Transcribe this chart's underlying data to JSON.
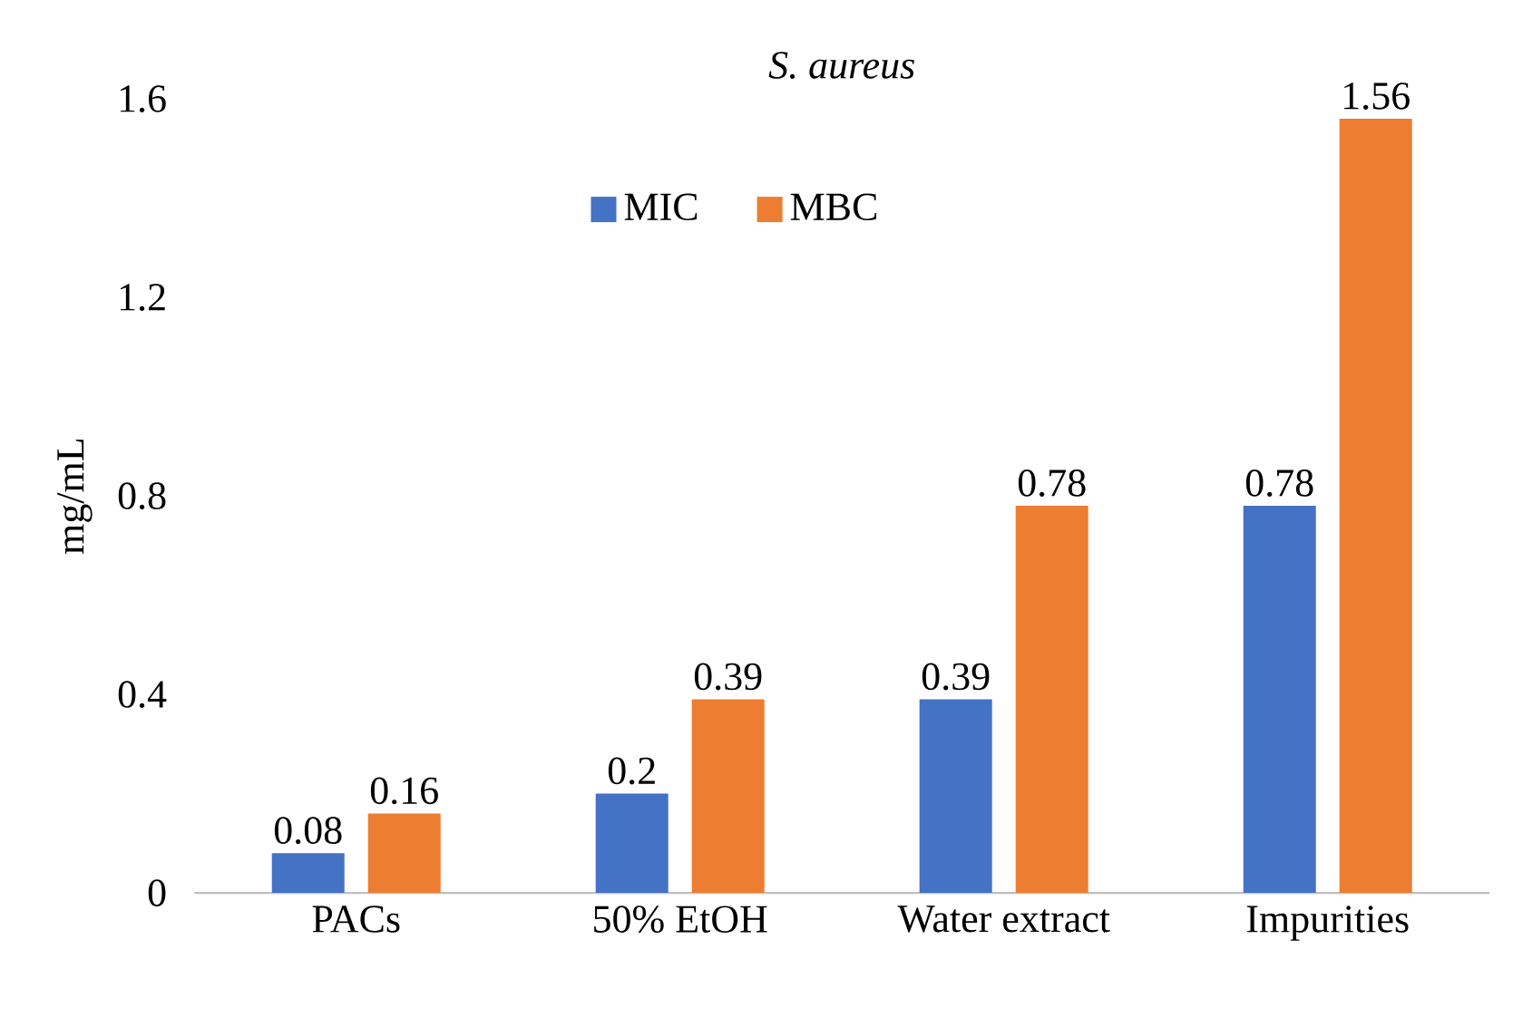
{
  "chart_data": {
    "type": "bar",
    "title": "S. aureus",
    "ylabel": "mg/mL",
    "categories": [
      "PACs",
      "50% EtOH",
      "Water extract",
      "Impurities"
    ],
    "series": [
      {
        "name": "MIC",
        "color": "#4472c4",
        "values": [
          0.08,
          0.2,
          0.39,
          0.78
        ]
      },
      {
        "name": "MBC",
        "color": "#ed7d31",
        "values": [
          0.16,
          0.39,
          0.78,
          1.56
        ]
      }
    ],
    "ylim": [
      0,
      1.6
    ],
    "yticks": [
      0,
      0.4,
      0.8,
      1.2,
      1.6
    ],
    "data_labels": true,
    "legend": "top",
    "grid": false
  }
}
